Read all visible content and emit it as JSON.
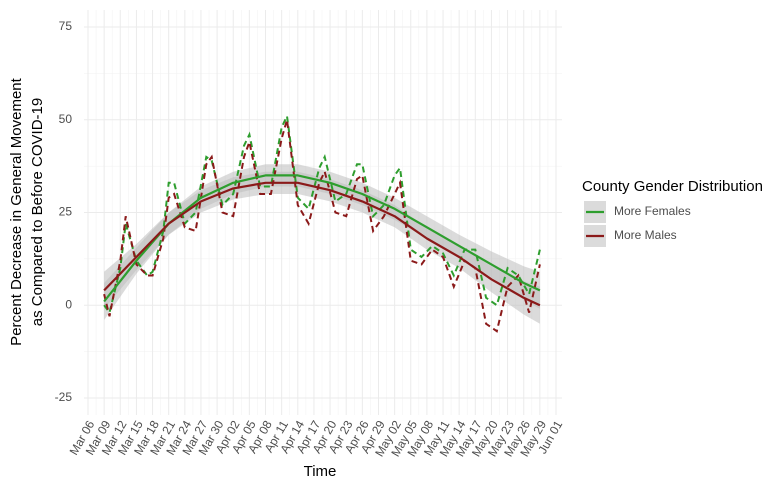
{
  "chart_data": {
    "type": "line",
    "xlabel": "Time",
    "ylabel": [
      "Percent Decrease in General Movement",
      "as Compared to Before COVID-19"
    ],
    "legend_title": "County Gender Distribution",
    "legend": "right",
    "grid": true,
    "xlim": [
      "Mar 06",
      "Jun 01"
    ],
    "xticks": [
      "Mar 06",
      "Mar 09",
      "Mar 12",
      "Mar 15",
      "Mar 18",
      "Mar 21",
      "Mar 24",
      "Mar 27",
      "Mar 30",
      "Apr 02",
      "Apr 05",
      "Apr 08",
      "Apr 11",
      "Apr 14",
      "Apr 17",
      "Apr 20",
      "Apr 23",
      "Apr 26",
      "Apr 29",
      "May 02",
      "May 05",
      "May 08",
      "May 11",
      "May 14",
      "May 17",
      "May 20",
      "May 23",
      "May 26",
      "May 29",
      "Jun 01"
    ],
    "ylim": [
      -29.6,
      79.6
    ],
    "yticks": [
      -25,
      0,
      25,
      50,
      75
    ],
    "x": [
      "Mar 09",
      "Mar 10",
      "Mar 12",
      "Mar 13",
      "Mar 15",
      "Mar 17",
      "Mar 18",
      "Mar 20",
      "Mar 21",
      "Mar 22",
      "Mar 24",
      "Mar 26",
      "Mar 28",
      "Mar 29",
      "Mar 31",
      "Apr 02",
      "Apr 04",
      "Apr 05",
      "Apr 07",
      "Apr 09",
      "Apr 11",
      "Apr 12",
      "Apr 14",
      "Apr 16",
      "Apr 18",
      "Apr 19",
      "Apr 21",
      "Apr 23",
      "Apr 25",
      "Apr 26",
      "Apr 28",
      "Apr 30",
      "May 02",
      "May 03",
      "May 05",
      "May 07",
      "May 09",
      "May 11",
      "May 13",
      "May 15",
      "May 17",
      "May 19",
      "May 21",
      "May 23",
      "May 25",
      "May 27",
      "May 29"
    ],
    "smooth_x": [
      "Mar 09",
      "Mar 15",
      "Mar 21",
      "Mar 27",
      "Apr 02",
      "Apr 08",
      "Apr 14",
      "Apr 20",
      "Apr 26",
      "May 02",
      "May 08",
      "May 14",
      "May 20",
      "May 26",
      "May 29"
    ],
    "band_color": "#bdbdbd",
    "series": [
      {
        "name": "More Females",
        "color": "#2e9e2e",
        "values": [
          0,
          -2,
          10,
          22,
          12,
          8,
          9,
          20,
          33,
          33,
          22,
          25,
          40,
          39,
          27,
          30,
          43,
          46,
          32,
          32,
          48,
          51,
          29,
          26,
          37,
          40,
          28,
          30,
          38,
          38,
          24,
          27,
          35,
          37,
          15,
          13,
          16,
          14,
          8,
          15,
          15,
          2,
          0,
          10,
          8,
          3,
          15
        ],
        "smooth": {
          "values": [
            1,
            12,
            22,
            29,
            33,
            35,
            35,
            33,
            30,
            26,
            21,
            16,
            11,
            6,
            4
          ],
          "lower": [
            -4,
            8.5,
            19,
            26,
            30,
            32,
            32,
            30,
            27,
            23,
            18,
            13,
            7.5,
            1.5,
            -1
          ],
          "upper": [
            6,
            15.5,
            25,
            32,
            36,
            38,
            38,
            36,
            33,
            29,
            24,
            19,
            14.5,
            10.5,
            9
          ]
        }
      },
      {
        "name": "More Males",
        "color": "#8b1a1a",
        "values": [
          3,
          -3,
          12,
          24,
          11,
          8,
          8,
          18,
          29,
          30,
          21,
          20,
          38,
          40,
          25,
          24,
          40,
          44,
          30,
          30,
          45,
          50,
          27,
          22,
          33,
          36,
          25,
          24,
          34,
          35,
          20,
          24,
          30,
          33,
          12,
          11,
          15,
          13,
          5,
          12,
          10,
          -5,
          -7,
          5,
          8,
          -2,
          11
        ],
        "smooth": {
          "values": [
            4,
            13,
            22,
            28,
            31.5,
            33,
            33,
            31,
            28,
            24,
            18,
            13,
            7,
            2,
            0
          ],
          "lower": [
            -1,
            9.5,
            19,
            25,
            28.5,
            30,
            30,
            28,
            25,
            21,
            15,
            10,
            3.5,
            -2.5,
            -5
          ],
          "upper": [
            9,
            16.5,
            25,
            31,
            34.5,
            36,
            36,
            34,
            31,
            27,
            21,
            16,
            10.5,
            6.5,
            5
          ]
        }
      }
    ]
  }
}
